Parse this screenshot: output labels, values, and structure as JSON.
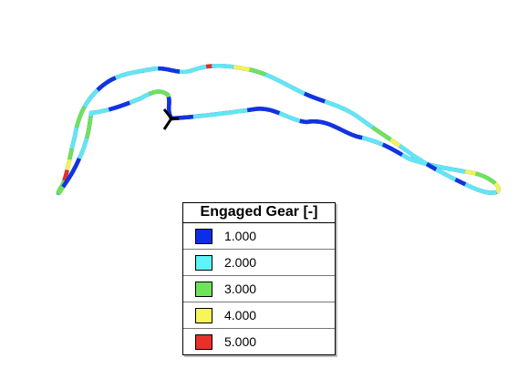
{
  "legend": {
    "title": "Engaged Gear [-]",
    "items": [
      {
        "label": "1.000",
        "color": "#0b2ee8"
      },
      {
        "label": "2.000",
        "color": "#5ef3f4"
      },
      {
        "label": "3.000",
        "color": "#6fe25a"
      },
      {
        "label": "4.000",
        "color": "#f6f65a"
      },
      {
        "label": "5.000",
        "color": "#e8302a"
      }
    ]
  },
  "track": {
    "segment_colors": [
      "#1233e0",
      "#62e6f2",
      "#6fe25a",
      "#f2f25a",
      "#e2302a"
    ],
    "start_marker_color": "#000000"
  }
}
